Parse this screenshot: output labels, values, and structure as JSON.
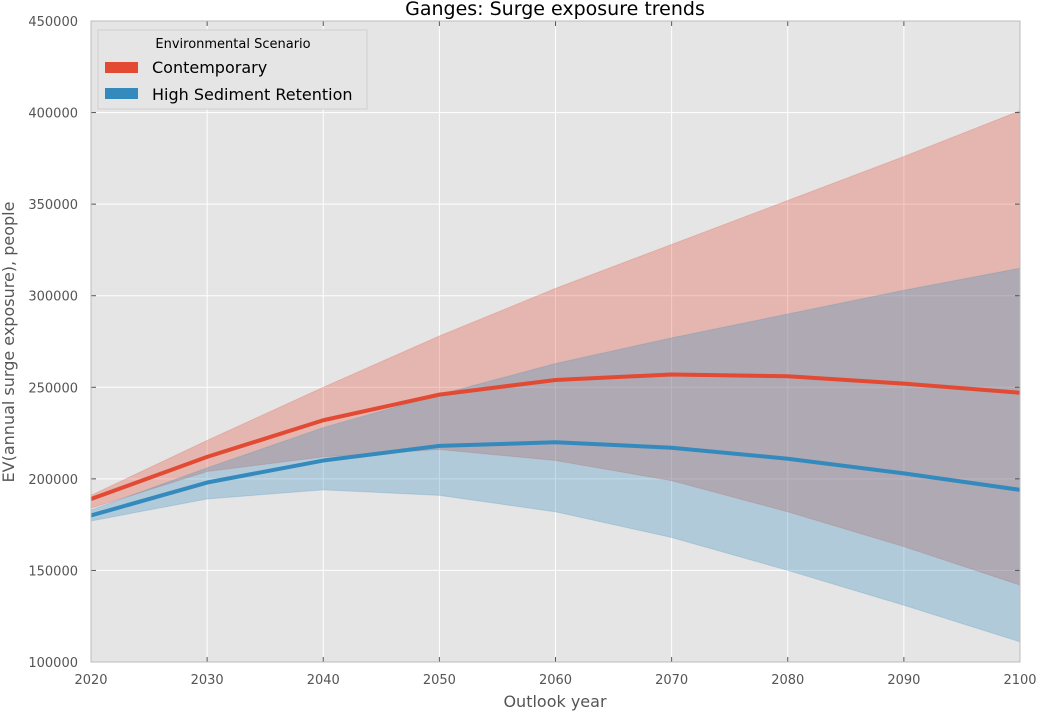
{
  "chart_data": {
    "type": "line",
    "title": "Ganges: Surge exposure trends",
    "xlabel": "Outlook year",
    "ylabel": "EV(annual surge exposure), people",
    "xlim": [
      2020,
      2100
    ],
    "ylim": [
      100000,
      450000
    ],
    "x_ticks": [
      2020,
      2030,
      2040,
      2050,
      2060,
      2070,
      2080,
      2090,
      2100
    ],
    "y_ticks": [
      100000,
      150000,
      200000,
      250000,
      300000,
      350000,
      400000,
      450000
    ],
    "x": [
      2020,
      2030,
      2040,
      2050,
      2060,
      2070,
      2080,
      2090,
      2100
    ],
    "grid": true,
    "legend": {
      "title": "Environmental Scenario",
      "placement": "top-left"
    },
    "series": [
      {
        "name": "Contemporary",
        "color": "#e24a33",
        "values": [
          189000,
          212000,
          232000,
          246000,
          254000,
          257000,
          256000,
          252000,
          247000
        ],
        "upper": [
          191000,
          221000,
          250000,
          278000,
          304000,
          328000,
          352000,
          376000,
          401000
        ],
        "lower": [
          184000,
          204000,
          212000,
          216000,
          210000,
          199000,
          182000,
          163000,
          142000
        ]
      },
      {
        "name": "High Sediment Retention",
        "color": "#348abd",
        "values": [
          180000,
          198000,
          210000,
          218000,
          220000,
          217000,
          211000,
          203000,
          194000
        ],
        "upper": [
          183000,
          206000,
          228000,
          246000,
          263000,
          277000,
          290000,
          303000,
          315000
        ],
        "lower": [
          177000,
          189000,
          194000,
          191000,
          182000,
          168000,
          150000,
          131000,
          111000
        ]
      }
    ]
  }
}
